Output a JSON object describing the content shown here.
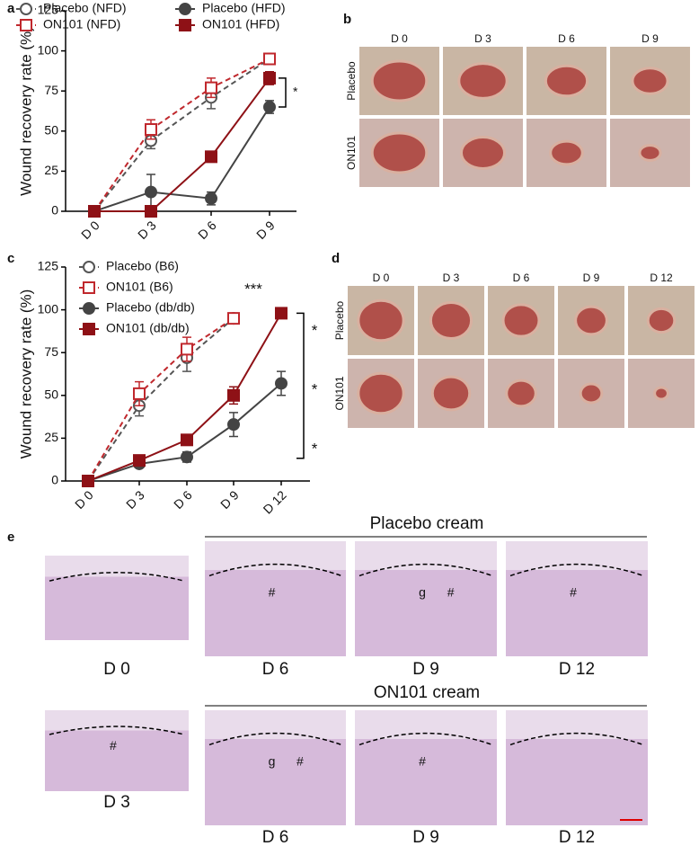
{
  "chart_data": [
    {
      "type": "line",
      "panel": "a",
      "ylabel": "Wound recovery rate (%)",
      "categories": [
        "D 0",
        "D 3",
        "D 6",
        "D 9"
      ],
      "ylim": [
        0,
        125
      ],
      "yticks": [
        0,
        25,
        50,
        75,
        100,
        125
      ],
      "series": [
        {
          "name": "Placebo (NFD)",
          "color": "#555555",
          "marker": "circle",
          "filled": false,
          "dashed": true,
          "values": [
            0,
            44,
            71,
            95
          ],
          "errors": [
            null,
            5,
            7,
            2
          ]
        },
        {
          "name": "ON101 (NFD)",
          "color": "#c0282d",
          "marker": "square",
          "filled": false,
          "dashed": true,
          "values": [
            0,
            51,
            77,
            95
          ],
          "errors": [
            null,
            6,
            6,
            2
          ]
        },
        {
          "name": "Placebo (HFD)",
          "color": "#444444",
          "marker": "circle",
          "filled": true,
          "dashed": false,
          "values": [
            0,
            12,
            8,
            65
          ],
          "errors": [
            null,
            11,
            4,
            4
          ]
        },
        {
          "name": "ON101 (HFD)",
          "color": "#8e1116",
          "marker": "square",
          "filled": true,
          "dashed": false,
          "values": [
            0,
            0,
            34,
            83
          ],
          "errors": [
            null,
            null,
            3,
            4
          ]
        }
      ],
      "annotations": [
        "*"
      ]
    },
    {
      "type": "line",
      "panel": "c",
      "ylabel": "Wound recovery rate (%)",
      "categories": [
        "D 0",
        "D 3",
        "D 6",
        "D 9",
        "D 12"
      ],
      "ylim": [
        0,
        125
      ],
      "yticks": [
        0,
        25,
        50,
        75,
        100,
        125
      ],
      "series": [
        {
          "name": "Placebo (B6)",
          "color": "#555555",
          "marker": "circle",
          "filled": false,
          "dashed": true,
          "values": [
            0,
            44,
            72,
            95,
            null
          ],
          "errors": [
            null,
            6,
            8,
            2,
            null
          ]
        },
        {
          "name": "ON101 (B6)",
          "color": "#c0282d",
          "marker": "square",
          "filled": false,
          "dashed": true,
          "values": [
            0,
            51,
            77,
            95,
            null
          ],
          "errors": [
            null,
            7,
            7,
            2,
            null
          ]
        },
        {
          "name": "Placebo (db/db)",
          "color": "#444444",
          "marker": "circle",
          "filled": true,
          "dashed": false,
          "values": [
            0,
            10,
            14,
            33,
            57
          ],
          "errors": [
            null,
            null,
            3,
            7,
            7
          ]
        },
        {
          "name": "ON101 (db/db)",
          "color": "#8e1116",
          "marker": "square",
          "filled": true,
          "dashed": false,
          "values": [
            0,
            12,
            24,
            50,
            98
          ],
          "errors": [
            null,
            null,
            null,
            5,
            null
          ]
        }
      ],
      "annotations": [
        "***",
        "*",
        "*",
        "*"
      ]
    }
  ],
  "panel_b": {
    "label": "b",
    "columns": [
      "D 0",
      "D 3",
      "D 6",
      "D 9"
    ],
    "rows": [
      "Placebo",
      "ON101"
    ]
  },
  "panel_d": {
    "label": "d",
    "columns": [
      "D 0",
      "D 3",
      "D 6",
      "D 9",
      "D 12"
    ],
    "rows": [
      "Placebo",
      "ON101"
    ]
  },
  "panel_e": {
    "label": "e",
    "groups": [
      "Placebo cream",
      "ON101 cream"
    ],
    "images": [
      {
        "caption": "D 0",
        "marks": []
      },
      {
        "caption": "D 6",
        "marks": [
          "#"
        ]
      },
      {
        "caption": "D 9",
        "marks": [
          "g",
          "#"
        ]
      },
      {
        "caption": "D 12",
        "marks": [
          "#"
        ]
      },
      {
        "caption": "D 3",
        "marks": [
          "#"
        ]
      },
      {
        "caption": "D 6",
        "marks": [
          "g",
          "#"
        ]
      },
      {
        "caption": "D 9",
        "marks": [
          "#"
        ]
      },
      {
        "caption": "D 12",
        "marks": []
      }
    ]
  }
}
